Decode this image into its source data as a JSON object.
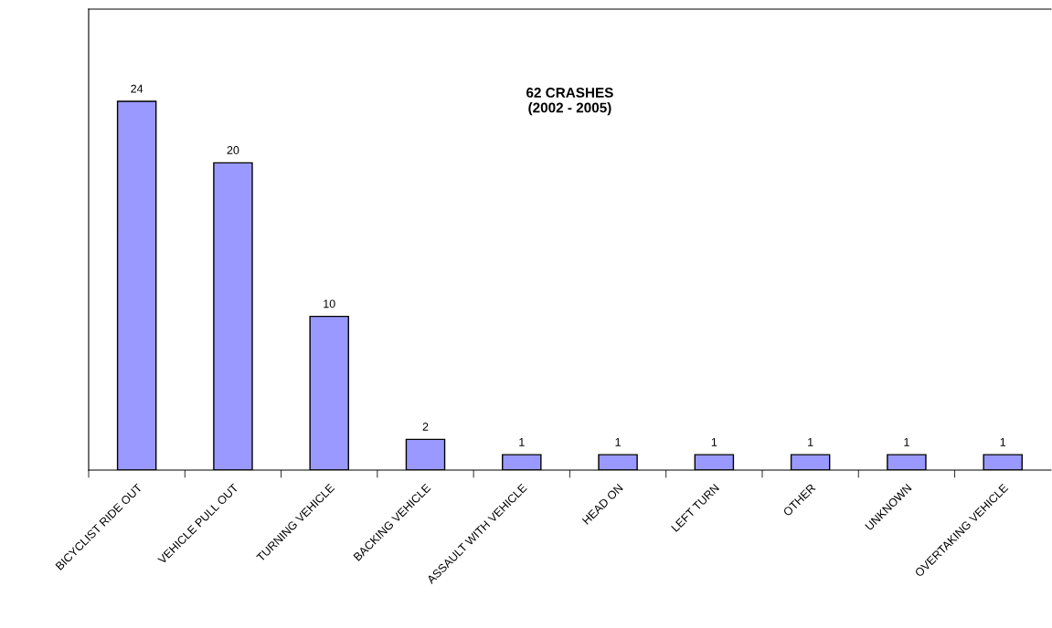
{
  "chart_data": {
    "type": "bar",
    "title": "62 CRASHES\n(2002 - 2005)",
    "categories": [
      "BICYCLIST RIDE OUT",
      "VEHICLE PULL OUT",
      "TURNING VEHICLE",
      "BACKING VEHICLE",
      "ASSAULT WITH VEHICLE",
      "HEAD ON",
      "LEFT TURN",
      "OTHER",
      "UNKNOWN",
      "OVERTAKING VEHICLE"
    ],
    "values": [
      24,
      20,
      10,
      2,
      1,
      1,
      1,
      1,
      1,
      1
    ],
    "color": "#9999ff",
    "ylim": [
      0,
      30
    ],
    "data_labels": true,
    "grid": false,
    "legend": false
  }
}
